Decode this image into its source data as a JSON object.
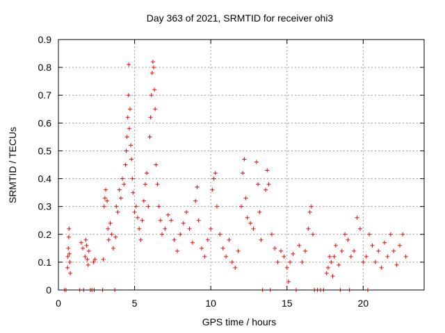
{
  "chart_data": {
    "type": "scatter",
    "title": "Day 363 of 2021, SRMTID for receiver ohi3",
    "xlabel": "GPS time / hours",
    "ylabel": "SRMTID / TECUs",
    "xlim": [
      0,
      24
    ],
    "ylim": [
      0,
      0.9
    ],
    "xticks": [
      0,
      5,
      10,
      15,
      20
    ],
    "yticks": [
      0,
      0.1,
      0.2,
      0.3,
      0.4,
      0.5,
      0.6,
      0.7,
      0.8,
      0.9
    ],
    "grid": true,
    "series": [
      {
        "name": "SRMTID",
        "marker": "+",
        "color": "#ff0000",
        "points": [
          [
            0.4,
            0.0
          ],
          [
            0.5,
            0.0
          ],
          [
            0.6,
            0.08
          ],
          [
            0.62,
            0.12
          ],
          [
            0.65,
            0.15
          ],
          [
            0.68,
            0.19
          ],
          [
            0.7,
            0.22
          ],
          [
            0.72,
            0.13
          ],
          [
            0.75,
            0.1
          ],
          [
            0.78,
            0.06
          ],
          [
            1.4,
            0.0
          ],
          [
            1.5,
            0.17
          ],
          [
            1.6,
            0.15
          ],
          [
            1.65,
            0.0
          ],
          [
            1.75,
            0.12
          ],
          [
            1.8,
            0.18
          ],
          [
            1.85,
            0.16
          ],
          [
            1.9,
            0.11
          ],
          [
            1.95,
            0.09
          ],
          [
            2.0,
            0.14
          ],
          [
            2.1,
            0.0
          ],
          [
            2.2,
            0.0
          ],
          [
            2.3,
            0.1
          ],
          [
            2.35,
            0.0
          ],
          [
            2.4,
            0.11
          ],
          [
            2.9,
            0.0
          ],
          [
            2.95,
            0.11
          ],
          [
            3.0,
            0.3
          ],
          [
            3.05,
            0.33
          ],
          [
            3.1,
            0.36
          ],
          [
            3.2,
            0.32
          ],
          [
            3.25,
            0.22
          ],
          [
            3.3,
            0.18
          ],
          [
            3.4,
            0.24
          ],
          [
            3.5,
            0.2
          ],
          [
            3.6,
            0.15
          ],
          [
            3.7,
            0.0
          ],
          [
            3.75,
            0.19
          ],
          [
            3.8,
            0.3
          ],
          [
            3.9,
            0.28
          ],
          [
            4.0,
            0.36
          ],
          [
            4.1,
            0.33
          ],
          [
            4.2,
            0.4
          ],
          [
            4.3,
            0.38
          ],
          [
            4.4,
            0.45
          ],
          [
            4.45,
            0.5
          ],
          [
            4.5,
            0.55
          ],
          [
            4.55,
            0.62
          ],
          [
            4.6,
            0.7
          ],
          [
            4.62,
            0.81
          ],
          [
            4.65,
            0.58
          ],
          [
            4.7,
            0.65
          ],
          [
            4.75,
            0.52
          ],
          [
            4.8,
            0.47
          ],
          [
            4.85,
            0.4
          ],
          [
            4.9,
            0.35
          ],
          [
            5.0,
            0.28
          ],
          [
            5.1,
            0.3
          ],
          [
            5.2,
            0.26
          ],
          [
            5.3,
            0.22
          ],
          [
            5.4,
            0.18
          ],
          [
            5.5,
            0.25
          ],
          [
            5.6,
            0.32
          ],
          [
            5.7,
            0.38
          ],
          [
            5.8,
            0.42
          ],
          [
            5.9,
            0.3
          ],
          [
            6.0,
            0.55
          ],
          [
            6.05,
            0.62
          ],
          [
            6.1,
            0.7
          ],
          [
            6.15,
            0.78
          ],
          [
            6.2,
            0.82
          ],
          [
            6.25,
            0.8
          ],
          [
            6.3,
            0.72
          ],
          [
            6.35,
            0.65
          ],
          [
            6.4,
            0.45
          ],
          [
            6.5,
            0.38
          ],
          [
            6.6,
            0.3
          ],
          [
            6.7,
            0.25
          ],
          [
            6.8,
            0.2
          ],
          [
            7.0,
            0.22
          ],
          [
            7.2,
            0.27
          ],
          [
            7.4,
            0.25
          ],
          [
            7.6,
            0.18
          ],
          [
            7.8,
            0.14
          ],
          [
            8.0,
            0.2
          ],
          [
            8.2,
            0.24
          ],
          [
            8.4,
            0.28
          ],
          [
            8.6,
            0.22
          ],
          [
            8.8,
            0.17
          ],
          [
            9.0,
            0.32
          ],
          [
            9.1,
            0.37
          ],
          [
            9.2,
            0.25
          ],
          [
            9.4,
            0.15
          ],
          [
            9.6,
            0.12
          ],
          [
            9.8,
            0.18
          ],
          [
            10.0,
            0.22
          ],
          [
            10.1,
            0.36
          ],
          [
            10.2,
            0.4
          ],
          [
            10.3,
            0.42
          ],
          [
            10.4,
            0.3
          ],
          [
            10.6,
            0.2
          ],
          [
            10.8,
            0.15
          ],
          [
            11.0,
            0.12
          ],
          [
            11.2,
            0.18
          ],
          [
            11.4,
            0.1
          ],
          [
            11.6,
            0.08
          ],
          [
            11.8,
            0.14
          ],
          [
            12.0,
            0.3
          ],
          [
            12.1,
            0.42
          ],
          [
            12.2,
            0.47
          ],
          [
            12.3,
            0.33
          ],
          [
            12.4,
            0.26
          ],
          [
            12.6,
            0.24
          ],
          [
            12.8,
            0.22
          ],
          [
            13.0,
            0.46
          ],
          [
            13.1,
            0.38
          ],
          [
            13.2,
            0.28
          ],
          [
            13.3,
            0.18
          ],
          [
            13.4,
            0.0
          ],
          [
            13.6,
            0.36
          ],
          [
            13.7,
            0.43
          ],
          [
            13.8,
            0.38
          ],
          [
            13.9,
            0.0
          ],
          [
            14.0,
            0.2
          ],
          [
            14.2,
            0.15
          ],
          [
            14.4,
            0.1
          ],
          [
            14.6,
            0.14
          ],
          [
            14.8,
            0.12
          ],
          [
            15.0,
            0.08
          ],
          [
            15.1,
            0.03
          ],
          [
            15.2,
            0.1
          ],
          [
            15.4,
            0.13
          ],
          [
            15.6,
            0.0
          ],
          [
            15.8,
            0.16
          ],
          [
            16.0,
            0.1
          ],
          [
            16.2,
            0.14
          ],
          [
            16.4,
            0.22
          ],
          [
            16.5,
            0.28
          ],
          [
            16.6,
            0.3
          ],
          [
            16.7,
            0.2
          ],
          [
            16.8,
            0.0
          ],
          [
            17.0,
            0.0
          ],
          [
            17.2,
            0.0
          ],
          [
            17.4,
            0.0
          ],
          [
            17.6,
            0.06
          ],
          [
            17.7,
            0.08
          ],
          [
            17.8,
            0.12
          ],
          [
            17.9,
            0.1
          ],
          [
            18.0,
            0.05
          ],
          [
            18.1,
            0.12
          ],
          [
            18.2,
            0.16
          ],
          [
            18.4,
            0.09
          ],
          [
            18.5,
            0.0
          ],
          [
            18.6,
            0.14
          ],
          [
            18.8,
            0.2
          ],
          [
            19.0,
            0.18
          ],
          [
            19.1,
            0.0
          ],
          [
            19.2,
            0.12
          ],
          [
            19.4,
            0.14
          ],
          [
            19.6,
            0.26
          ],
          [
            19.8,
            0.22
          ],
          [
            20.0,
            0.1
          ],
          [
            20.2,
            0.12
          ],
          [
            20.3,
            0.0
          ],
          [
            20.4,
            0.2
          ],
          [
            20.6,
            0.16
          ],
          [
            20.8,
            0.1
          ],
          [
            21.0,
            0.14
          ],
          [
            21.2,
            0.08
          ],
          [
            21.4,
            0.17
          ],
          [
            21.6,
            0.12
          ],
          [
            21.8,
            0.2
          ],
          [
            22.0,
            0.14
          ],
          [
            22.2,
            0.09
          ],
          [
            22.4,
            0.16
          ],
          [
            22.6,
            0.2
          ],
          [
            22.8,
            0.12
          ]
        ]
      }
    ]
  }
}
